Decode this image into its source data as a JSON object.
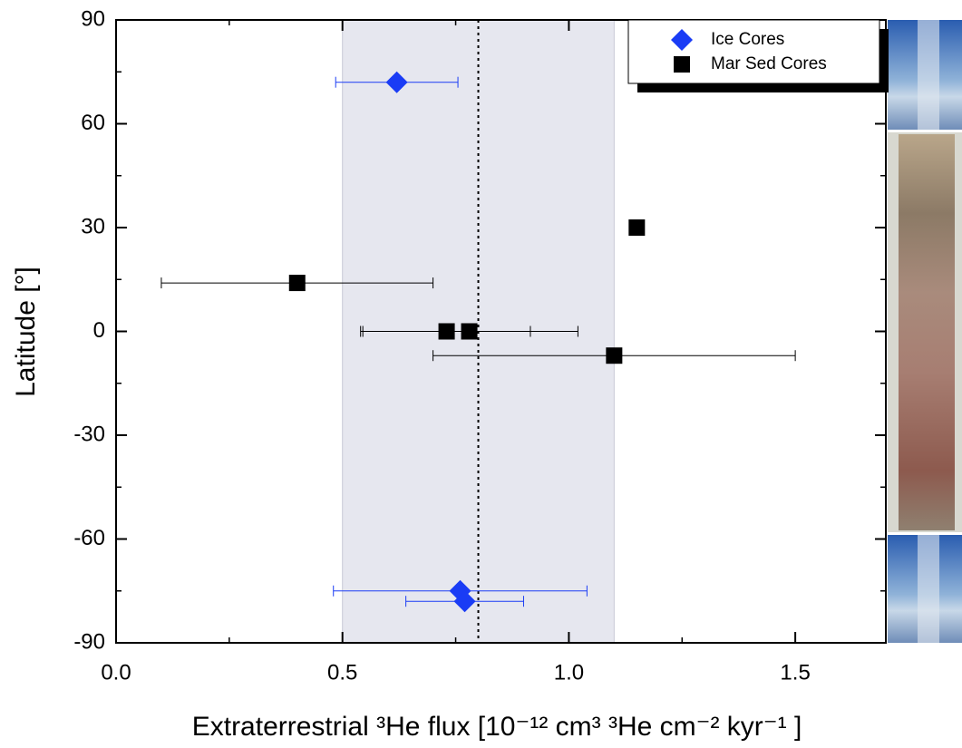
{
  "chart_data": {
    "type": "scatter",
    "x_label": "Extraterrestrial ³He flux [10⁻¹² cm³ ³He cm⁻² kyr⁻¹ ]",
    "y_label": "Latitude [°]",
    "xlim": [
      0,
      1.7
    ],
    "ylim": [
      -90,
      90
    ],
    "xticks": [
      {
        "value": 0,
        "label": "0.0"
      },
      0.5,
      {
        "value": 1,
        "label": "1.0"
      },
      1.5
    ],
    "yticks": [
      90,
      60,
      30,
      0,
      -30,
      -60,
      -90
    ],
    "band": [
      0.5,
      1.1
    ],
    "band_color": "#e6e7ef",
    "reference_line": 0.8,
    "legend": "upper right",
    "series": [
      {
        "name": "Ice Cores",
        "color": "#1a3cf5",
        "marker": "diamond",
        "x": [
          0.62,
          0.76,
          0.77
        ],
        "y": [
          72,
          -75,
          -78
        ],
        "xerr": [
          0.135,
          0.28,
          0.13
        ]
      },
      {
        "name": "Mar Sed Cores",
        "color": "#000000",
        "marker": "square",
        "x": [
          1.15,
          0.4,
          0.73,
          0.78,
          1.1
        ],
        "y": [
          30,
          14,
          0,
          0,
          -7
        ],
        "xerr": [
          null,
          0.3,
          0.185,
          0.24,
          0.4
        ]
      }
    ]
  }
}
